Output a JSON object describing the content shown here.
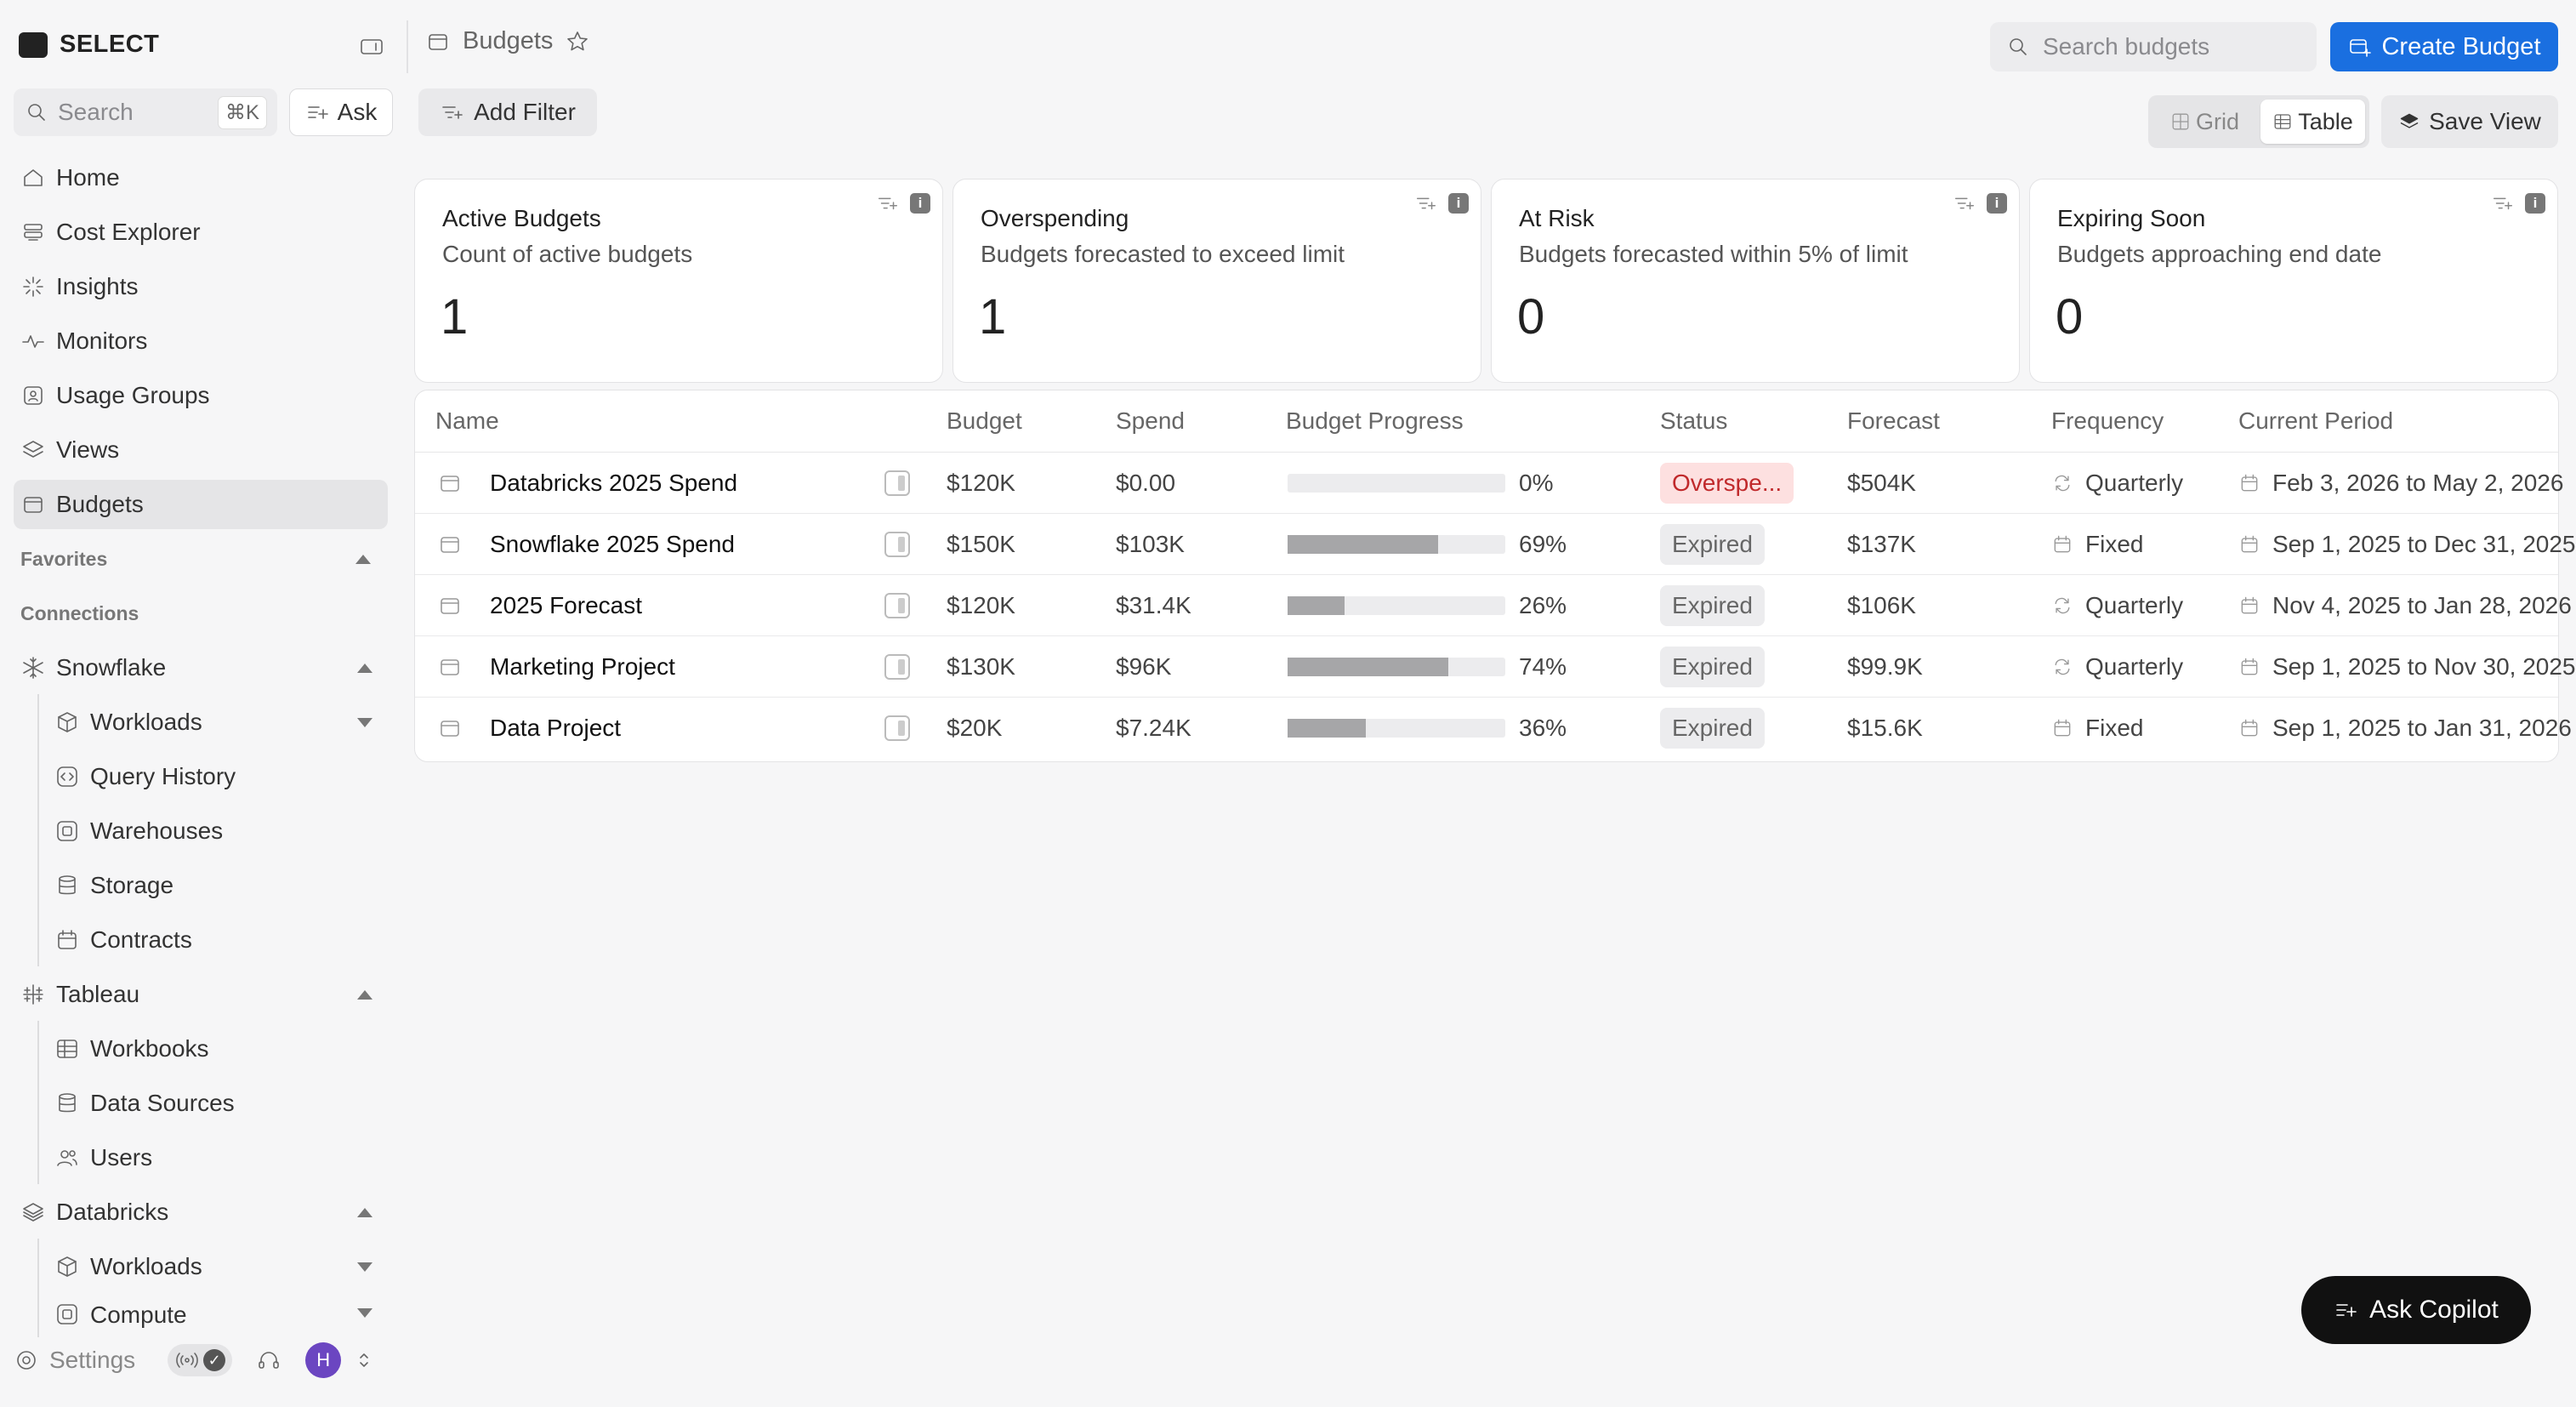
{
  "brand": {
    "name": "SELECT"
  },
  "sidebar": {
    "search_placeholder": "Search",
    "search_shortcut": "⌘K",
    "ask_label": "Ask",
    "items": [
      {
        "label": "Home",
        "icon": "home-icon"
      },
      {
        "label": "Cost Explorer",
        "icon": "stack-icon"
      },
      {
        "label": "Insights",
        "icon": "sparkle-icon"
      },
      {
        "label": "Monitors",
        "icon": "pulse-icon"
      },
      {
        "label": "Usage Groups",
        "icon": "group-icon"
      },
      {
        "label": "Views",
        "icon": "layers-icon"
      },
      {
        "label": "Budgets",
        "icon": "wallet-icon",
        "active": true
      }
    ],
    "favorites_label": "Favorites",
    "connections_label": "Connections",
    "snowflake": {
      "label": "Snowflake",
      "children": [
        "Workloads",
        "Query History",
        "Warehouses",
        "Storage",
        "Contracts"
      ]
    },
    "tableau": {
      "label": "Tableau",
      "children": [
        "Workbooks",
        "Data Sources",
        "Users"
      ]
    },
    "databricks": {
      "label": "Databricks",
      "children": [
        "Workloads",
        "Compute"
      ]
    },
    "settings_label": "Settings",
    "avatar_initial": "H"
  },
  "header": {
    "breadcrumb": "Budgets",
    "search_placeholder": "Search budgets",
    "create_label": "Create Budget",
    "add_filter_label": "Add Filter",
    "view_grid_label": "Grid",
    "view_table_label": "Table",
    "save_view_label": "Save View"
  },
  "cards": [
    {
      "title": "Active Budgets",
      "desc": "Count of active budgets",
      "value": "1"
    },
    {
      "title": "Overspending",
      "desc": "Budgets forecasted to exceed limit",
      "value": "1"
    },
    {
      "title": "At Risk",
      "desc": "Budgets forecasted within 5% of limit",
      "value": "0"
    },
    {
      "title": "Expiring Soon",
      "desc": "Budgets approaching end date",
      "value": "0"
    }
  ],
  "table": {
    "columns": [
      "Name",
      "Budget",
      "Spend",
      "Budget Progress",
      "Status",
      "Forecast",
      "Frequency",
      "Current Period"
    ],
    "rows": [
      {
        "name": "Databricks 2025 Spend",
        "budget": "$120K",
        "spend": "$0.00",
        "progress": 0,
        "progress_label": "0%",
        "status": "Overspe...",
        "status_tone": "red",
        "forecast": "$504K",
        "frequency": "Quarterly",
        "frequency_icon": "repeat-icon",
        "period": "Feb 3, 2026 to May 2, 2026"
      },
      {
        "name": "Snowflake 2025 Spend",
        "budget": "$150K",
        "spend": "$103K",
        "progress": 69,
        "progress_label": "69%",
        "status": "Expired",
        "status_tone": "gray",
        "forecast": "$137K",
        "frequency": "Fixed",
        "frequency_icon": "calendar-icon",
        "period": "Sep 1, 2025 to Dec 31, 2025"
      },
      {
        "name": "2025 Forecast",
        "budget": "$120K",
        "spend": "$31.4K",
        "progress": 26,
        "progress_label": "26%",
        "status": "Expired",
        "status_tone": "gray",
        "forecast": "$106K",
        "frequency": "Quarterly",
        "frequency_icon": "repeat-icon",
        "period": "Nov 4, 2025 to Jan 28, 2026"
      },
      {
        "name": "Marketing Project",
        "budget": "$130K",
        "spend": "$96K",
        "progress": 74,
        "progress_label": "74%",
        "status": "Expired",
        "status_tone": "gray",
        "forecast": "$99.9K",
        "frequency": "Quarterly",
        "frequency_icon": "repeat-icon",
        "period": "Sep 1, 2025 to Nov 30, 2025"
      },
      {
        "name": "Data Project",
        "budget": "$20K",
        "spend": "$7.24K",
        "progress": 36,
        "progress_label": "36%",
        "status": "Expired",
        "status_tone": "gray",
        "forecast": "$15.6K",
        "frequency": "Fixed",
        "frequency_icon": "calendar-icon",
        "period": "Sep 1, 2025 to Jan 31, 2026"
      }
    ]
  },
  "copilot": {
    "label": "Ask Copilot"
  },
  "colors": {
    "accent": "#1a6fe0",
    "danger_text": "#c0292b",
    "danger_bg": "#fde0e0"
  }
}
